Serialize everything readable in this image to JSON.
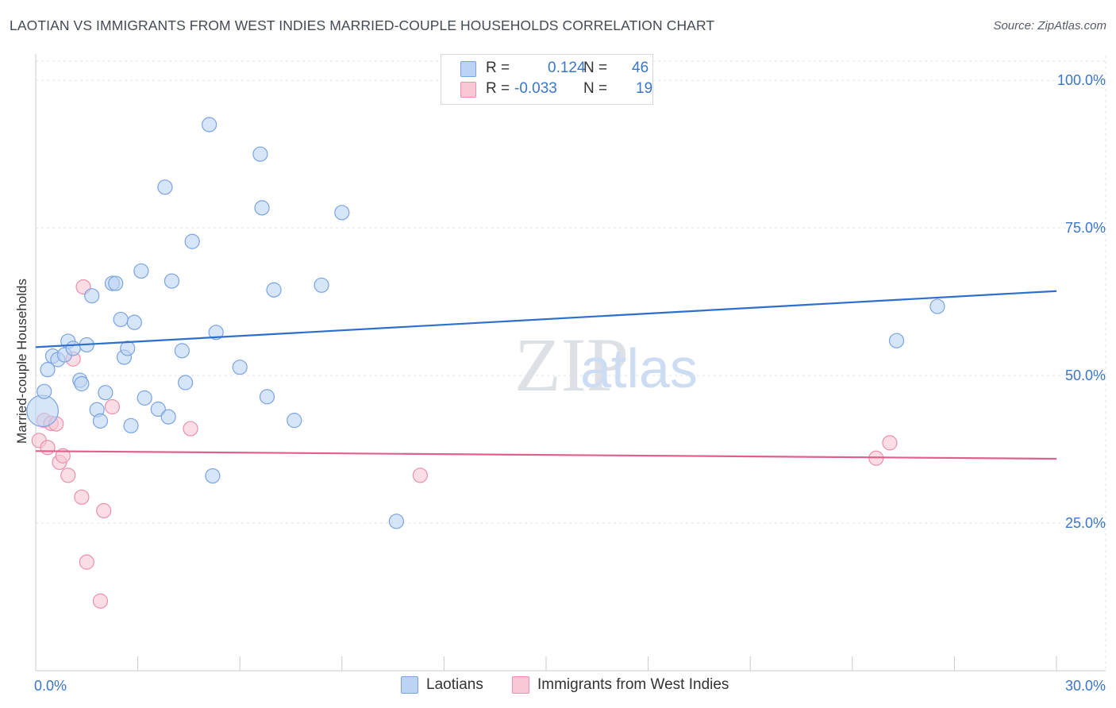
{
  "title": "LAOTIAN VS IMMIGRANTS FROM WEST INDIES MARRIED-COUPLE HOUSEHOLDS CORRELATION CHART",
  "source": "Source: ZipAtlas.com",
  "watermark": {
    "zip": "ZIP",
    "atlas": "atlas"
  },
  "legend_stats": {
    "r_label": "R =",
    "n_label": "N =",
    "laotians": {
      "r": "0.124",
      "n": "46"
    },
    "west_indies": {
      "r": "-0.033",
      "n": "19"
    }
  },
  "colors": {
    "blue_fill": "#bcd3f3",
    "blue_stroke": "#7aa3df",
    "blue_line": "#2d6fcc",
    "pink_fill": "#f9c6d5",
    "pink_stroke": "#ec8fab",
    "pink_line": "#e0608a",
    "axis_label": "#3a76c8"
  },
  "chart_data": {
    "type": "scatter",
    "title": "LAOTIAN VS IMMIGRANTS FROM WEST INDIES MARRIED-COUPLE HOUSEHOLDS CORRELATION CHART",
    "ylabel": "Married-couple Households",
    "xlabel": "",
    "xlim": [
      0,
      30
    ],
    "ylim": [
      0,
      105
    ],
    "x_tick_labels": [
      "0.0%",
      "30.0%"
    ],
    "y_ticks": [
      25,
      50,
      75,
      100
    ],
    "y_tick_labels": [
      "25.0%",
      "50.0%",
      "75.0%",
      "100.0%"
    ],
    "grid": true,
    "legend": [
      "Laotians",
      "Immigrants from West Indies"
    ],
    "series": [
      {
        "name": "Laotians",
        "points": [
          [
            0.2,
            44,
            2.2
          ],
          [
            0.25,
            47.3,
            1
          ],
          [
            0.35,
            51,
            1
          ],
          [
            0.5,
            53.3,
            1
          ],
          [
            0.65,
            52.7,
            1
          ],
          [
            0.85,
            53.5,
            1
          ],
          [
            0.95,
            55.8,
            1
          ],
          [
            1.1,
            54.6,
            1
          ],
          [
            1.3,
            49.2,
            1
          ],
          [
            1.35,
            48.6,
            1
          ],
          [
            1.5,
            55.2,
            1
          ],
          [
            1.65,
            63.5,
            1
          ],
          [
            1.8,
            44.2,
            1
          ],
          [
            1.9,
            42.3,
            1
          ],
          [
            2.05,
            47.1,
            1
          ],
          [
            2.25,
            65.6,
            1
          ],
          [
            2.35,
            65.6,
            1
          ],
          [
            2.5,
            59.5,
            1
          ],
          [
            2.6,
            53.1,
            1
          ],
          [
            2.7,
            54.6,
            1
          ],
          [
            2.8,
            41.5,
            1
          ],
          [
            2.9,
            59,
            1
          ],
          [
            3.1,
            67.7,
            1
          ],
          [
            3.2,
            46.2,
            1
          ],
          [
            3.6,
            44.3,
            1
          ],
          [
            3.8,
            81.9,
            1
          ],
          [
            3.9,
            43,
            1
          ],
          [
            4.0,
            66,
            1
          ],
          [
            4.3,
            54.2,
            1
          ],
          [
            4.4,
            48.8,
            1
          ],
          [
            4.6,
            72.7,
            1
          ],
          [
            5.1,
            92.5,
            1
          ],
          [
            5.2,
            33,
            1
          ],
          [
            5.3,
            57.3,
            1
          ],
          [
            6.0,
            51.4,
            1
          ],
          [
            6.6,
            87.5,
            1
          ],
          [
            6.65,
            78.4,
            1
          ],
          [
            6.8,
            46.4,
            1
          ],
          [
            7.0,
            64.5,
            1
          ],
          [
            7.6,
            42.4,
            1
          ],
          [
            8.4,
            65.3,
            1
          ],
          [
            9.0,
            77.6,
            1
          ],
          [
            10.6,
            25.3,
            1
          ],
          [
            25.3,
            55.9,
            1
          ],
          [
            26.5,
            61.7,
            1
          ]
        ]
      },
      {
        "name": "Immigrants from West Indies",
        "points": [
          [
            0.1,
            39,
            1
          ],
          [
            0.25,
            42.4,
            1
          ],
          [
            0.35,
            37.8,
            1
          ],
          [
            0.45,
            41.9,
            1
          ],
          [
            0.6,
            41.8,
            1
          ],
          [
            0.7,
            35.3,
            1
          ],
          [
            0.8,
            36.4,
            1
          ],
          [
            0.95,
            33.1,
            1
          ],
          [
            1.1,
            52.8,
            1
          ],
          [
            1.35,
            29.4,
            1
          ],
          [
            1.4,
            65,
            1
          ],
          [
            1.5,
            18.4,
            1
          ],
          [
            1.9,
            11.8,
            1
          ],
          [
            2.0,
            27.1,
            1
          ],
          [
            2.25,
            44.7,
            1
          ],
          [
            4.55,
            41,
            1
          ],
          [
            11.3,
            33.1,
            1
          ],
          [
            24.7,
            36,
            1
          ],
          [
            25.1,
            38.6,
            1
          ]
        ]
      }
    ],
    "trend_lines": [
      {
        "name": "Laotians",
        "y_at_xmin": 54.8,
        "y_at_xmax": 64.3
      },
      {
        "name": "Immigrants from West Indies",
        "y_at_xmin": 37.2,
        "y_at_xmax": 35.9
      }
    ]
  }
}
